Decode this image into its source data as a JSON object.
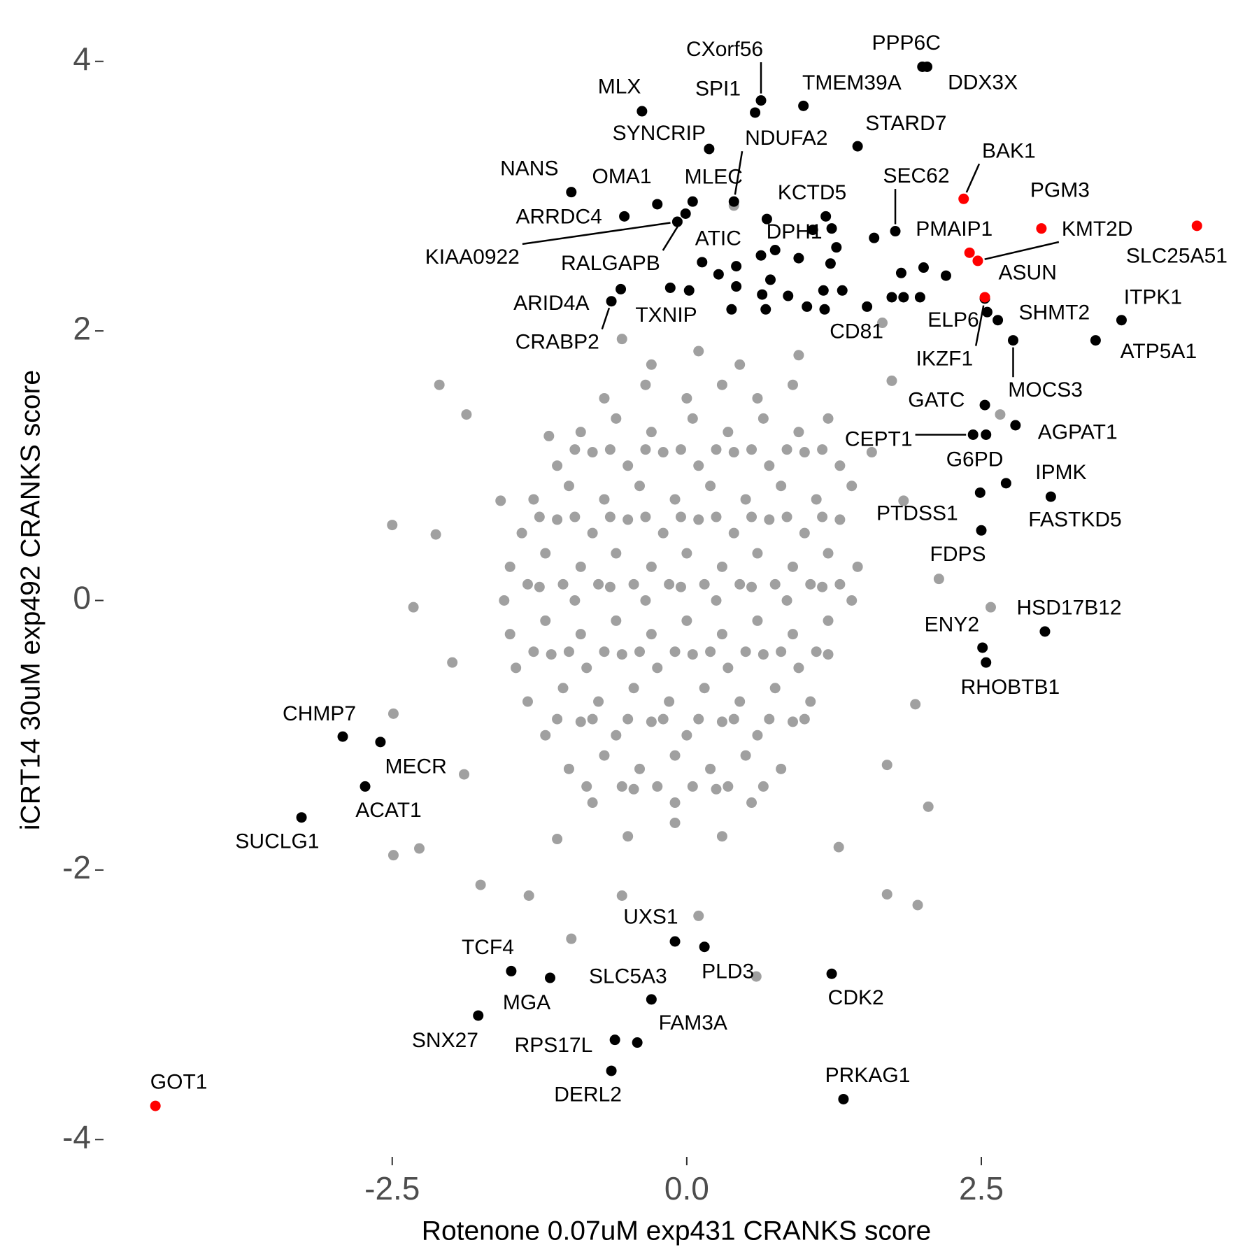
{
  "chart_data": {
    "type": "scatter",
    "x_label": "Rotenone 0.07uM exp431 CRANKS score",
    "y_label": "iCRT14 30uM exp492 CRANKS score",
    "xlim": [
      -4.9,
      4.75
    ],
    "ylim": [
      -4.2,
      4.2
    ],
    "xticks": [
      -2.5,
      {
        "value": 0,
        "label": "0.0"
      },
      2.5
    ],
    "yticks": [
      -4,
      -2,
      0,
      2,
      4
    ],
    "grid": false,
    "series": [
      {
        "color": "#a0a0a0",
        "x": [
          -0.3,
          0.1,
          0.45,
          -0.7,
          -0.35,
          0,
          0.3,
          0.6,
          0.9,
          -0.9,
          -0.6,
          -0.3,
          0.05,
          0.35,
          0.65,
          0.95,
          1.2,
          -1.1,
          -0.8,
          -0.5,
          -0.2,
          0.1,
          0.4,
          0.7,
          1,
          1.3,
          -1.3,
          -1,
          -0.7,
          -0.4,
          -0.1,
          0.2,
          0.5,
          0.8,
          1.1,
          1.4,
          -1.4,
          -1.1,
          -0.8,
          -0.5,
          -0.2,
          0.1,
          0.4,
          0.7,
          1,
          1.3,
          -1.5,
          -1.2,
          -0.9,
          -0.6,
          -0.3,
          0,
          0.3,
          0.6,
          0.9,
          1.2,
          1.45,
          -1.55,
          -1.25,
          -0.95,
          -0.65,
          -0.35,
          -0.05,
          0.25,
          0.55,
          0.85,
          1.15,
          1.4,
          -1.5,
          -1.2,
          -0.9,
          -0.6,
          -0.3,
          0,
          0.3,
          0.6,
          0.9,
          1.2,
          -1.45,
          -1.15,
          -0.85,
          -0.55,
          -0.25,
          0.05,
          0.35,
          0.65,
          0.95,
          1.2,
          -1.35,
          -1.05,
          -0.75,
          -0.45,
          -0.15,
          0.15,
          0.45,
          0.75,
          1.05,
          -1.2,
          -0.9,
          -0.6,
          -0.3,
          0,
          0.3,
          0.6,
          0.9,
          -1,
          -0.7,
          -0.4,
          -0.1,
          0.2,
          0.5,
          0.8,
          -0.8,
          -0.45,
          -0.1,
          0.25,
          0.55,
          -0.5,
          -0.1,
          0.3,
          -0.95,
          -0.65,
          -0.35,
          -0.05,
          0.25,
          0.55,
          0.85,
          1.15,
          -1.25,
          -0.95,
          -0.65,
          -0.35,
          -0.05,
          0.25,
          0.55,
          0.85,
          1.15,
          -1.35,
          -1.05,
          -0.75,
          -0.45,
          -0.15,
          0.15,
          0.45,
          0.75,
          1.05,
          1.3,
          -1.3,
          -1,
          -0.7,
          -0.4,
          -0.1,
          0.2,
          0.5,
          0.8,
          1.1,
          -1.1,
          -0.8,
          -0.5,
          -0.2,
          0.1,
          0.4,
          0.7,
          1,
          -0.85,
          -0.55,
          -0.25,
          0.05,
          0.35,
          0.65,
          -2.1,
          -1.87,
          -2.5,
          -2.13,
          -2.32,
          -2.49,
          -2.27,
          -2.49,
          -1.75,
          -1.34,
          -0.98,
          -0.55,
          0.1,
          0.59,
          1.7,
          1.96,
          1.7,
          1.94,
          2.58,
          2.14,
          2.66,
          1.74,
          1.66,
          0.4,
          -0.55,
          -1.17,
          -1.58,
          -1.99,
          -1.89,
          -1.1,
          1.29,
          2.05,
          1.84,
          1.57,
          0.95
        ],
        "values": [
          1.75,
          1.85,
          1.75,
          1.5,
          1.6,
          1.5,
          1.6,
          1.5,
          1.6,
          1.25,
          1.35,
          1.25,
          1.35,
          1.25,
          1.35,
          1.25,
          1.35,
          1,
          1.1,
          1,
          1.1,
          1,
          1.1,
          1,
          1.1,
          1,
          0.75,
          0.85,
          0.75,
          0.85,
          0.75,
          0.85,
          0.75,
          0.85,
          0.75,
          0.85,
          0.5,
          0.6,
          0.5,
          0.6,
          0.5,
          0.6,
          0.5,
          0.6,
          0.5,
          0.6,
          0.25,
          0.35,
          0.25,
          0.35,
          0.25,
          0.35,
          0.25,
          0.35,
          0.25,
          0.35,
          0.25,
          0,
          0.1,
          0,
          0.1,
          0,
          0.1,
          0,
          0.1,
          0,
          0.1,
          0,
          -0.25,
          -0.15,
          -0.25,
          -0.15,
          -0.25,
          -0.15,
          -0.25,
          -0.15,
          -0.25,
          -0.15,
          -0.5,
          -0.4,
          -0.5,
          -0.4,
          -0.5,
          -0.4,
          -0.5,
          -0.4,
          -0.5,
          -0.4,
          -0.75,
          -0.65,
          -0.75,
          -0.65,
          -0.75,
          -0.65,
          -0.75,
          -0.65,
          -0.75,
          -1,
          -0.9,
          -1,
          -0.9,
          -1,
          -0.9,
          -1,
          -0.9,
          -1.25,
          -1.15,
          -1.25,
          -1.15,
          -1.25,
          -1.15,
          -1.25,
          -1.5,
          -1.4,
          -1.5,
          -1.4,
          -1.5,
          -1.75,
          -1.65,
          -1.75,
          1.12,
          1.12,
          1.12,
          1.12,
          1.12,
          1.12,
          1.12,
          1.12,
          0.62,
          0.62,
          0.62,
          0.62,
          0.62,
          0.62,
          0.62,
          0.62,
          0.62,
          0.12,
          0.12,
          0.12,
          0.12,
          0.12,
          0.12,
          0.12,
          0.12,
          0.12,
          0.12,
          -0.38,
          -0.38,
          -0.38,
          -0.38,
          -0.38,
          -0.38,
          -0.38,
          -0.38,
          -0.38,
          -0.88,
          -0.88,
          -0.88,
          -0.88,
          -0.88,
          -0.88,
          -0.88,
          -0.88,
          -1.38,
          -1.38,
          -1.38,
          -1.38,
          -1.38,
          -1.38,
          1.6,
          1.38,
          0.56,
          0.49,
          -0.05,
          -0.84,
          -1.84,
          -1.89,
          -2.11,
          -2.19,
          -2.51,
          -2.19,
          -2.34,
          -2.79,
          -2.18,
          -2.26,
          -1.22,
          -0.77,
          -0.05,
          0.16,
          1.38,
          1.63,
          2.06,
          2.93,
          1.94,
          1.22,
          0.74,
          -0.46,
          -1.29,
          -1.77,
          -1.83,
          -1.53,
          0.74,
          1.1,
          1.82
        ]
      },
      {
        "color": "#000000",
        "x": [
          2.0,
          2.04,
          0.63,
          0.58,
          0.99,
          -0.38,
          0.19,
          0.4,
          1.45,
          -0.98,
          -0.25,
          0.05,
          1.77,
          1.18,
          -0.53,
          -0.08,
          1.07,
          -0.01,
          0.13,
          -0.56,
          -0.64,
          -0.14,
          1.53,
          2.55,
          2.53,
          2.64,
          3.69,
          3.47,
          2.77,
          2.53,
          2.79,
          2.43,
          2.54,
          2.71,
          3.09,
          2.49,
          2.5,
          3.04,
          2.51,
          2.54,
          -2.92,
          -2.6,
          -2.73,
          -3.27,
          -0.1,
          0.15,
          -1.49,
          -1.16,
          -0.3,
          1.23,
          -1.77,
          -0.61,
          -0.42,
          -0.64,
          1.33,
          1.23,
          1.27,
          1.22,
          0.95,
          0.75,
          0.63,
          0.42,
          0.27,
          0.42,
          0.71,
          0.64,
          0.86,
          1.02,
          1.17,
          1.32,
          1.16,
          0.38,
          0.67,
          0.02,
          1.59,
          1.82,
          1.74,
          1.84,
          2.01,
          2.2,
          1.98,
          0.68
        ],
        "values": [
          3.96,
          3.96,
          3.71,
          3.62,
          3.67,
          3.63,
          3.35,
          2.96,
          3.37,
          3.03,
          2.94,
          2.96,
          2.74,
          2.85,
          2.85,
          2.81,
          2.75,
          2.87,
          2.51,
          2.31,
          2.22,
          2.32,
          2.18,
          2.14,
          2.24,
          2.08,
          2.08,
          1.93,
          1.93,
          1.45,
          1.3,
          1.23,
          1.23,
          0.87,
          0.77,
          0.8,
          0.52,
          -0.23,
          -0.35,
          -0.46,
          -1.01,
          -1.05,
          -1.38,
          -1.61,
          -2.53,
          -2.57,
          -2.75,
          -2.8,
          -2.96,
          -2.77,
          -3.08,
          -3.26,
          -3.28,
          -3.49,
          -3.7,
          2.76,
          2.62,
          2.5,
          2.54,
          2.6,
          2.56,
          2.48,
          2.42,
          2.33,
          2.38,
          2.27,
          2.26,
          2.18,
          2.16,
          2.3,
          2.3,
          2.16,
          2.16,
          2.3,
          2.69,
          2.43,
          2.25,
          2.25,
          2.47,
          2.41,
          2.25,
          2.83
        ],
        "labels": [
          "PPP6C",
          "DDX3X",
          "CXorf56",
          "SPI1",
          "TMEM39A",
          "MLX",
          "SYNCRIP",
          "NDUFA2",
          "STARD7",
          "NANS",
          "OMA1",
          "MLEC",
          "SEC62",
          "KCTD5",
          "ARRDC4",
          "KIAA0922",
          "DPH1",
          "RALGAPB",
          "ATIC",
          "ARID4A",
          "CRABP2",
          "TXNIP",
          "CD81",
          "ELP6",
          "IKZF1",
          "SHMT2",
          "ITPK1",
          "ATP5A1",
          "MOCS3",
          "GATC",
          "AGPAT1",
          "CEPT1",
          "G6PD",
          "IPMK",
          "FASTKD5",
          "PTDSS1",
          "FDPS",
          "HSD17B12",
          "ENY2",
          "RHOBTB1",
          "CHMP7",
          "MECR",
          "ACAT1",
          "SUCLG1",
          "UXS1",
          "PLD3",
          "TCF4",
          "MGA",
          "SLC5A3",
          "CDK2",
          "SNX27",
          "RPS17L",
          "FAM3A",
          "DERL2",
          "PRKAG1",
          null,
          null,
          null,
          null,
          null,
          null,
          null,
          null,
          null,
          null,
          null,
          null,
          null,
          null,
          null,
          null,
          null,
          null,
          null,
          null,
          null,
          null,
          null,
          null,
          null,
          null,
          null
        ]
      },
      {
        "color": "#ff0000",
        "x": [
          2.35,
          3.01,
          2.4,
          2.47,
          2.53,
          4.33,
          -4.51
        ],
        "values": [
          2.98,
          2.76,
          2.58,
          2.52,
          2.25,
          2.78,
          -3.75
        ],
        "labels": [
          "BAK1",
          "PGM3",
          "PMAIP1",
          "KMT2D",
          "ASUN",
          "SLC25A51",
          "GOT1"
        ]
      }
    ]
  }
}
